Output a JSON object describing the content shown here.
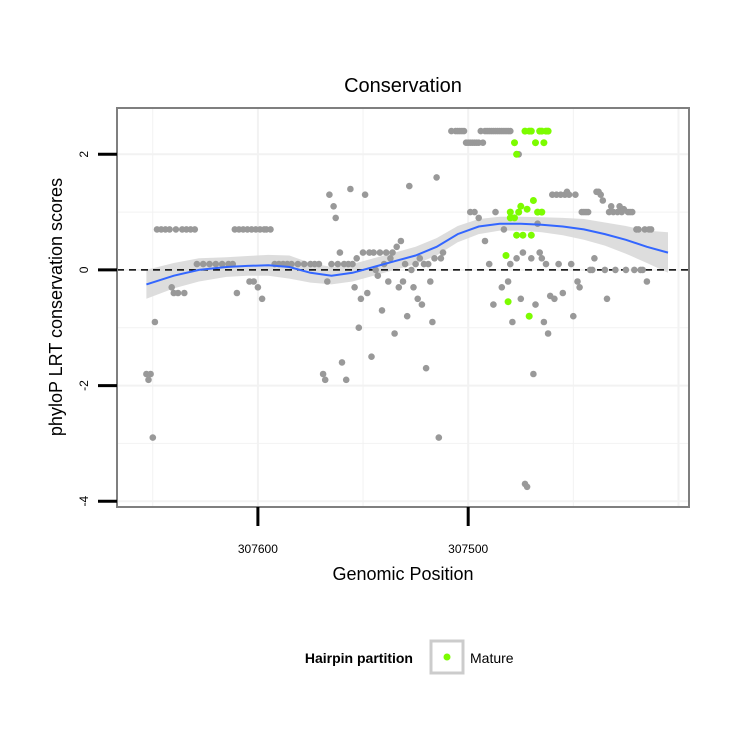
{
  "chart_data": {
    "type": "scatter",
    "title": "Conservation",
    "xlabel": "Genomic Position",
    "ylabel": "phyloP LRT conservation scores",
    "x_reversed": true,
    "xlim": [
      307667,
      307395
    ],
    "ylim": [
      -4.1,
      2.8
    ],
    "x_ticks": [
      307600,
      307500
    ],
    "x_tick_labels": [
      "307600",
      "307500"
    ],
    "y_ticks": [
      2,
      0,
      -2,
      -4
    ],
    "y_tick_labels": [
      "2",
      "0",
      "-2",
      "-4"
    ],
    "grid": true,
    "reference_line": {
      "y": 0,
      "style": "dashed"
    },
    "legend": {
      "title": "Hairpin partition",
      "position": "bottom",
      "entries": [
        {
          "label": "Mature",
          "color": "#7cfc00"
        }
      ]
    },
    "colors": {
      "background_points": "#999999",
      "mature": "#7cfc00",
      "smooth": "#3366ff",
      "ribbon": "#d9d9d9",
      "panel_border": "#7f7f7f",
      "grid": "#f2f2f2"
    },
    "series": [
      {
        "role": "background",
        "points": [
          [
            307653,
            -1.8
          ],
          [
            307652,
            -1.9
          ],
          [
            307651,
            -1.8
          ],
          [
            307650,
            -2.9
          ],
          [
            307649,
            -0.9
          ],
          [
            307648,
            0.7
          ],
          [
            307646,
            0.7
          ],
          [
            307644,
            0.7
          ],
          [
            307642,
            0.7
          ],
          [
            307641,
            -0.3
          ],
          [
            307640,
            -0.4
          ],
          [
            307639,
            0.7
          ],
          [
            307638,
            -0.4
          ],
          [
            307636,
            0.7
          ],
          [
            307635,
            -0.4
          ],
          [
            307634,
            0.7
          ],
          [
            307632,
            0.7
          ],
          [
            307630,
            0.7
          ],
          [
            307629,
            0.1
          ],
          [
            307626,
            0.1
          ],
          [
            307623,
            0.1
          ],
          [
            307620,
            0.1
          ],
          [
            307617,
            0.1
          ],
          [
            307614,
            0.1
          ],
          [
            307612,
            0.1
          ],
          [
            307611,
            0.7
          ],
          [
            307610,
            -0.4
          ],
          [
            307609,
            0.7
          ],
          [
            307607,
            0.7
          ],
          [
            307605,
            0.7
          ],
          [
            307604,
            -0.2
          ],
          [
            307603,
            0.7
          ],
          [
            307602,
            -0.2
          ],
          [
            307601,
            0.7
          ],
          [
            307600,
            -0.3
          ],
          [
            307599,
            0.7
          ],
          [
            307598,
            -0.5
          ],
          [
            307597,
            0.7
          ],
          [
            307596,
            0.7
          ],
          [
            307594,
            0.7
          ],
          [
            307592,
            0.1
          ],
          [
            307590,
            0.1
          ],
          [
            307588,
            0.1
          ],
          [
            307586,
            0.1
          ],
          [
            307584,
            0.1
          ],
          [
            307581,
            0.1
          ],
          [
            307578,
            0.1
          ],
          [
            307575,
            0.1
          ],
          [
            307573,
            0.1
          ],
          [
            307571,
            0.1
          ],
          [
            307569,
            -1.8
          ],
          [
            307568,
            -1.9
          ],
          [
            307567,
            -0.2
          ],
          [
            307566,
            1.3
          ],
          [
            307565,
            0.1
          ],
          [
            307564,
            1.1
          ],
          [
            307563,
            0.9
          ],
          [
            307562,
            0.1
          ],
          [
            307561,
            0.3
          ],
          [
            307560,
            -1.6
          ],
          [
            307559,
            0.1
          ],
          [
            307558,
            -1.9
          ],
          [
            307557,
            0.1
          ],
          [
            307556,
            1.4
          ],
          [
            307555,
            0.1
          ],
          [
            307554,
            -0.3
          ],
          [
            307553,
            0.2
          ],
          [
            307552,
            -1.0
          ],
          [
            307551,
            -0.5
          ],
          [
            307550,
            0.3
          ],
          [
            307549,
            1.3
          ],
          [
            307548,
            -0.4
          ],
          [
            307547,
            0.3
          ],
          [
            307546,
            -1.5
          ],
          [
            307545,
            0.3
          ],
          [
            307544,
            0.0
          ],
          [
            307543,
            -0.1
          ],
          [
            307542,
            0.3
          ],
          [
            307541,
            -0.7
          ],
          [
            307540,
            0.1
          ],
          [
            307539,
            0.3
          ],
          [
            307538,
            -0.2
          ],
          [
            307537,
            0.2
          ],
          [
            307536,
            0.3
          ],
          [
            307535,
            -1.1
          ],
          [
            307534,
            0.4
          ],
          [
            307533,
            -0.3
          ],
          [
            307532,
            0.5
          ],
          [
            307531,
            -0.2
          ],
          [
            307530,
            0.1
          ],
          [
            307529,
            -0.8
          ],
          [
            307528,
            1.45
          ],
          [
            307527,
            0.0
          ],
          [
            307526,
            -0.3
          ],
          [
            307525,
            0.1
          ],
          [
            307524,
            -0.5
          ],
          [
            307523,
            0.2
          ],
          [
            307522,
            -0.6
          ],
          [
            307521,
            0.1
          ],
          [
            307520,
            -1.7
          ],
          [
            307519,
            0.1
          ],
          [
            307518,
            -0.2
          ],
          [
            307517,
            -0.9
          ],
          [
            307516,
            0.2
          ],
          [
            307515,
            1.6
          ],
          [
            307514,
            -2.9
          ],
          [
            307513,
            0.2
          ],
          [
            307512,
            0.3
          ],
          [
            307508,
            2.4
          ],
          [
            307506,
            2.4
          ],
          [
            307505,
            2.4
          ],
          [
            307504,
            2.4
          ],
          [
            307503,
            2.4
          ],
          [
            307502,
            2.4
          ],
          [
            307501,
            2.2
          ],
          [
            307500,
            2.2
          ],
          [
            307499,
            2.2
          ],
          [
            307498,
            2.2
          ],
          [
            307497,
            2.2
          ],
          [
            307496,
            2.2
          ],
          [
            307495,
            2.2
          ],
          [
            307494,
            2.4
          ],
          [
            307493,
            2.2
          ],
          [
            307492,
            2.4
          ],
          [
            307491,
            2.4
          ],
          [
            307490,
            2.4
          ],
          [
            307489,
            2.4
          ],
          [
            307488,
            2.4
          ],
          [
            307487,
            2.4
          ],
          [
            307486,
            2.4
          ],
          [
            307485,
            2.4
          ],
          [
            307484,
            2.4
          ],
          [
            307483,
            2.4
          ],
          [
            307482,
            2.4
          ],
          [
            307481,
            2.4
          ],
          [
            307480,
            2.4
          ],
          [
            307499,
            1.0
          ],
          [
            307497,
            1.0
          ],
          [
            307495,
            0.9
          ],
          [
            307492,
            0.5
          ],
          [
            307490,
            0.1
          ],
          [
            307488,
            -0.6
          ],
          [
            307487,
            1.0
          ],
          [
            307484,
            -0.3
          ],
          [
            307483,
            0.7
          ],
          [
            307481,
            -0.2
          ],
          [
            307480,
            0.1
          ],
          [
            307479,
            -0.9
          ],
          [
            307477,
            0.2
          ],
          [
            307476,
            2.0
          ],
          [
            307475,
            -0.5
          ],
          [
            307474,
            0.3
          ],
          [
            307473,
            -3.7
          ],
          [
            307472,
            -3.75
          ],
          [
            307471,
            -0.8
          ],
          [
            307470,
            0.2
          ],
          [
            307469,
            -1.8
          ],
          [
            307468,
            -0.6
          ],
          [
            307467,
            0.8
          ],
          [
            307466,
            0.3
          ],
          [
            307465,
            0.2
          ],
          [
            307464,
            -0.9
          ],
          [
            307463,
            0.1
          ],
          [
            307462,
            -1.1
          ],
          [
            307461,
            -0.45
          ],
          [
            307460,
            1.3
          ],
          [
            307459,
            -0.5
          ],
          [
            307458,
            1.3
          ],
          [
            307457,
            0.1
          ],
          [
            307456,
            1.3
          ],
          [
            307455,
            -0.4
          ],
          [
            307454,
            1.3
          ],
          [
            307453,
            1.35
          ],
          [
            307452,
            1.3
          ],
          [
            307451,
            0.1
          ],
          [
            307450,
            -0.8
          ],
          [
            307449,
            1.3
          ],
          [
            307448,
            -0.2
          ],
          [
            307447,
            -0.3
          ],
          [
            307446,
            1.0
          ],
          [
            307445,
            1.0
          ],
          [
            307444,
            1.0
          ],
          [
            307443,
            1.0
          ],
          [
            307442,
            0.0
          ],
          [
            307441,
            0.0
          ],
          [
            307440,
            0.2
          ],
          [
            307439,
            1.35
          ],
          [
            307438,
            1.35
          ],
          [
            307437,
            1.3
          ],
          [
            307436,
            1.2
          ],
          [
            307435,
            0.0
          ],
          [
            307434,
            -0.5
          ],
          [
            307433,
            1.0
          ],
          [
            307432,
            1.1
          ],
          [
            307431,
            1.0
          ],
          [
            307430,
            0.0
          ],
          [
            307429,
            1.0
          ],
          [
            307428,
            1.1
          ],
          [
            307427,
            1.0
          ],
          [
            307426,
            1.05
          ],
          [
            307425,
            0.0
          ],
          [
            307424,
            1.0
          ],
          [
            307423,
            1.0
          ],
          [
            307422,
            1.0
          ],
          [
            307421,
            0.0
          ],
          [
            307420,
            0.7
          ],
          [
            307419,
            0.7
          ],
          [
            307418,
            0.0
          ],
          [
            307417,
            0.0
          ],
          [
            307416,
            0.7
          ],
          [
            307415,
            -0.2
          ],
          [
            307414,
            0.7
          ],
          [
            307413,
            0.7
          ]
        ]
      },
      {
        "role": "Mature",
        "name": "Mature",
        "points": [
          [
            307482,
            0.25
          ],
          [
            307481,
            -0.55
          ],
          [
            307480,
            0.9
          ],
          [
            307480,
            1.0
          ],
          [
            307478,
            2.2
          ],
          [
            307477,
            2.0
          ],
          [
            307478,
            0.9
          ],
          [
            307477,
            0.6
          ],
          [
            307476,
            1.0
          ],
          [
            307475,
            1.1
          ],
          [
            307474,
            0.6
          ],
          [
            307473,
            2.4
          ],
          [
            307472,
            1.05
          ],
          [
            307471,
            -0.8
          ],
          [
            307471,
            2.4
          ],
          [
            307470,
            2.4
          ],
          [
            307470,
            0.6
          ],
          [
            307469,
            1.2
          ],
          [
            307468,
            2.2
          ],
          [
            307467,
            1.0
          ],
          [
            307466,
            2.4
          ],
          [
            307465,
            1.0
          ],
          [
            307465,
            2.4
          ],
          [
            307464,
            2.2
          ],
          [
            307463,
            2.4
          ],
          [
            307462,
            2.4
          ]
        ]
      }
    ],
    "smooth": {
      "method": "loess",
      "x": [
        307653,
        307640,
        307628,
        307615,
        307605,
        307595,
        307585,
        307575,
        307565,
        307555,
        307545,
        307535,
        307525,
        307515,
        307505,
        307495,
        307485,
        307475,
        307465,
        307455,
        307445,
        307435,
        307425,
        307415,
        307405
      ],
      "y": [
        -0.25,
        -0.1,
        0.0,
        0.05,
        0.07,
        0.08,
        0.05,
        -0.05,
        -0.1,
        -0.05,
        0.05,
        0.15,
        0.25,
        0.4,
        0.62,
        0.75,
        0.8,
        0.8,
        0.78,
        0.75,
        0.7,
        0.62,
        0.52,
        0.4,
        0.3
      ],
      "lo": [
        -0.5,
        -0.32,
        -0.2,
        -0.12,
        -0.1,
        -0.1,
        -0.15,
        -0.22,
        -0.25,
        -0.2,
        -0.1,
        0.0,
        0.1,
        0.25,
        0.48,
        0.62,
        0.68,
        0.68,
        0.65,
        0.6,
        0.52,
        0.42,
        0.28,
        0.12,
        -0.05
      ],
      "hi": [
        0.0,
        0.12,
        0.2,
        0.22,
        0.24,
        0.26,
        0.25,
        0.12,
        0.05,
        0.1,
        0.2,
        0.3,
        0.4,
        0.55,
        0.76,
        0.88,
        0.92,
        0.92,
        0.91,
        0.9,
        0.88,
        0.82,
        0.76,
        0.68,
        0.65
      ]
    }
  }
}
